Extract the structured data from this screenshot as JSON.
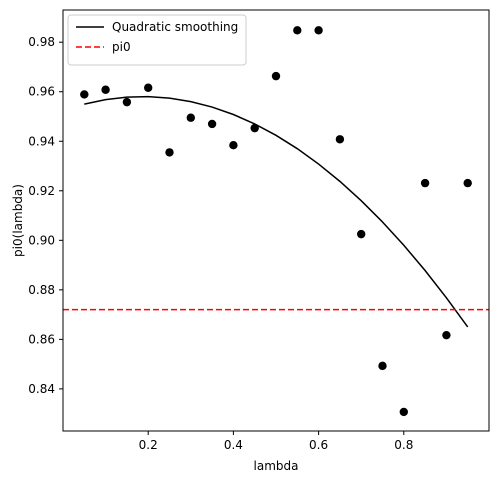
{
  "chart_data": {
    "type": "scatter",
    "xlabel": "lambda",
    "ylabel": "pi0(lambda)",
    "xlim": [
      0.0,
      1.0
    ],
    "ylim": [
      0.823,
      0.993
    ],
    "grid": false,
    "legend_position": "top-left",
    "x_ticks": [
      0.2,
      0.4,
      0.6,
      0.8
    ],
    "x_tick_labels": [
      "0.2",
      "0.4",
      "0.6",
      "0.8"
    ],
    "y_ticks": [
      0.84,
      0.86,
      0.88,
      0.9,
      0.92,
      0.94,
      0.96,
      0.98
    ],
    "y_tick_labels": [
      "0.84",
      "0.86",
      "0.88",
      "0.90",
      "0.92",
      "0.94",
      "0.96",
      "0.98"
    ],
    "series": [
      {
        "name": "",
        "kind": "scatter",
        "color": "#000000",
        "x": [
          0.05,
          0.1,
          0.15,
          0.2,
          0.25,
          0.3,
          0.35,
          0.4,
          0.45,
          0.5,
          0.55,
          0.6,
          0.65,
          0.7,
          0.75,
          0.8,
          0.85,
          0.9,
          0.95
        ],
        "y": [
          0.9589,
          0.9608,
          0.9558,
          0.9616,
          0.9355,
          0.9495,
          0.947,
          0.9384,
          0.9453,
          0.9663,
          0.9848,
          0.9848,
          0.9408,
          0.9025,
          0.8493,
          0.8307,
          0.9231,
          0.8617,
          0.9231
        ]
      },
      {
        "name": "Quadratic smoothing",
        "kind": "line",
        "color": "#000000",
        "dash": "solid",
        "x": [
          0.05,
          0.1,
          0.15,
          0.2,
          0.25,
          0.3,
          0.35,
          0.4,
          0.45,
          0.5,
          0.55,
          0.6,
          0.65,
          0.7,
          0.75,
          0.8,
          0.85,
          0.9,
          0.95
        ],
        "y": [
          0.955,
          0.9568,
          0.9578,
          0.958,
          0.9574,
          0.956,
          0.9538,
          0.9508,
          0.947,
          0.9424,
          0.937,
          0.9308,
          0.9238,
          0.916,
          0.9074,
          0.898,
          0.8878,
          0.8768,
          0.865
        ]
      },
      {
        "name": "pi0",
        "kind": "hline",
        "color": "#ff0000",
        "dash": "dashed",
        "y": 0.872
      }
    ]
  }
}
